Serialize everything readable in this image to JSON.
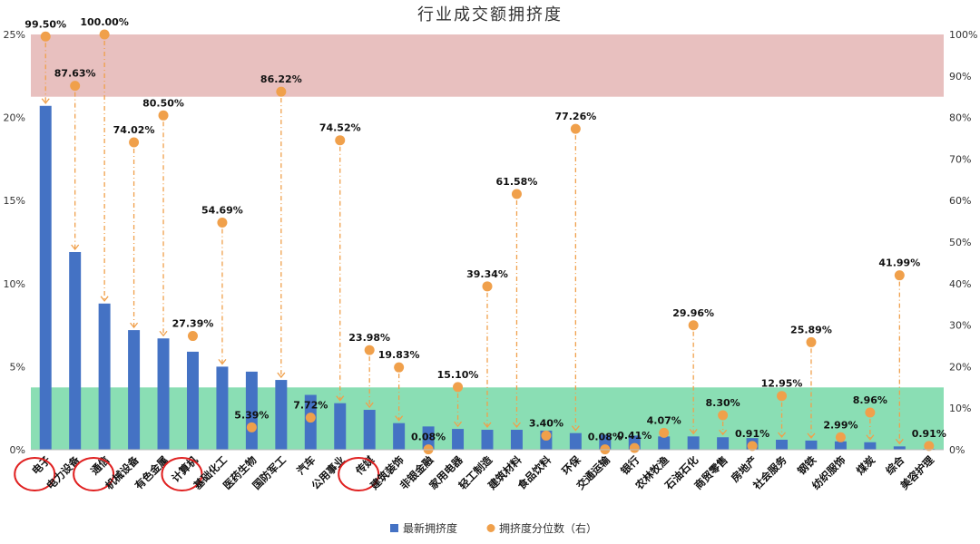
{
  "chart_data": {
    "type": "bar",
    "title": "行业成交额拥挤度",
    "categories": [
      "电子",
      "电力设备",
      "通信",
      "机械设备",
      "有色金属",
      "计算机",
      "基础化工",
      "医药生物",
      "国防军工",
      "汽车",
      "公用事业",
      "传媒",
      "建筑装饰",
      "非银金融",
      "家用电器",
      "轻工制造",
      "建筑材料",
      "食品饮料",
      "环保",
      "交通运输",
      "银行",
      "农林牧渔",
      "石油石化",
      "商贸零售",
      "房地产",
      "社会服务",
      "钢铁",
      "纺织服饰",
      "煤炭",
      "综合",
      "美容护理"
    ],
    "series": [
      {
        "name": "最新拥挤度",
        "axis": "left",
        "color": "#4472C4",
        "values": [
          20.7,
          11.9,
          8.8,
          7.2,
          6.7,
          5.9,
          5.0,
          4.7,
          4.2,
          3.3,
          2.8,
          2.4,
          1.6,
          1.4,
          1.25,
          1.2,
          1.2,
          1.15,
          1.0,
          0.9,
          0.85,
          0.8,
          0.8,
          0.75,
          0.7,
          0.6,
          0.55,
          0.5,
          0.45,
          0.2,
          0.05
        ]
      },
      {
        "name": "拥挤度分位数（右）",
        "axis": "right",
        "color": "#F0A04B",
        "values": [
          99.5,
          87.63,
          100.0,
          74.02,
          80.5,
          27.39,
          54.69,
          5.39,
          86.22,
          7.72,
          74.52,
          23.98,
          19.83,
          0.08,
          15.1,
          39.34,
          61.58,
          3.4,
          77.26,
          0.08,
          0.41,
          4.07,
          29.96,
          8.3,
          0.91,
          12.95,
          25.89,
          2.99,
          8.96,
          41.99,
          0.91
        ],
        "labels": [
          "99.50%",
          "87.63%",
          "100.00%",
          "74.02%",
          "80.50%",
          "27.39%",
          "54.69%",
          "5.39%",
          "86.22%",
          "7.72%",
          "74.52%",
          "23.98%",
          "19.83%",
          "0.08%",
          "15.10%",
          "39.34%",
          "61.58%",
          "3.40%",
          "77.26%",
          "0.08%",
          "0.41%",
          "4.07%",
          "29.96%",
          "8.30%",
          "0.91%",
          "12.95%",
          "25.89%",
          "2.99%",
          "8.96%",
          "41.99%",
          "0.91%"
        ]
      }
    ],
    "y_left": {
      "ylim": [
        0,
        25
      ],
      "ticks": [
        0,
        5,
        10,
        15,
        20,
        25
      ],
      "tick_labels": [
        "0%",
        "5%",
        "10%",
        "15%",
        "20%",
        "25%"
      ]
    },
    "y_right": {
      "ylim": [
        0,
        100
      ],
      "ticks": [
        0,
        10,
        20,
        30,
        40,
        50,
        60,
        70,
        80,
        90,
        100
      ],
      "tick_labels": [
        "0%",
        "10%",
        "20%",
        "30%",
        "40%",
        "50%",
        "60%",
        "70%",
        "80%",
        "90%",
        "100%"
      ]
    },
    "bands": [
      {
        "name": "high",
        "range_right_axis": [
          85,
          100
        ],
        "color": "#D99694"
      },
      {
        "name": "low",
        "range_right_axis": [
          0,
          15
        ],
        "color": "#3CC882"
      }
    ],
    "highlighted_categories": [
      "电子",
      "通信",
      "计算机",
      "传媒"
    ],
    "highlight_color": "#E02020",
    "connector_color": "#F0A04B",
    "grid": false,
    "legend": "bottom-center"
  }
}
